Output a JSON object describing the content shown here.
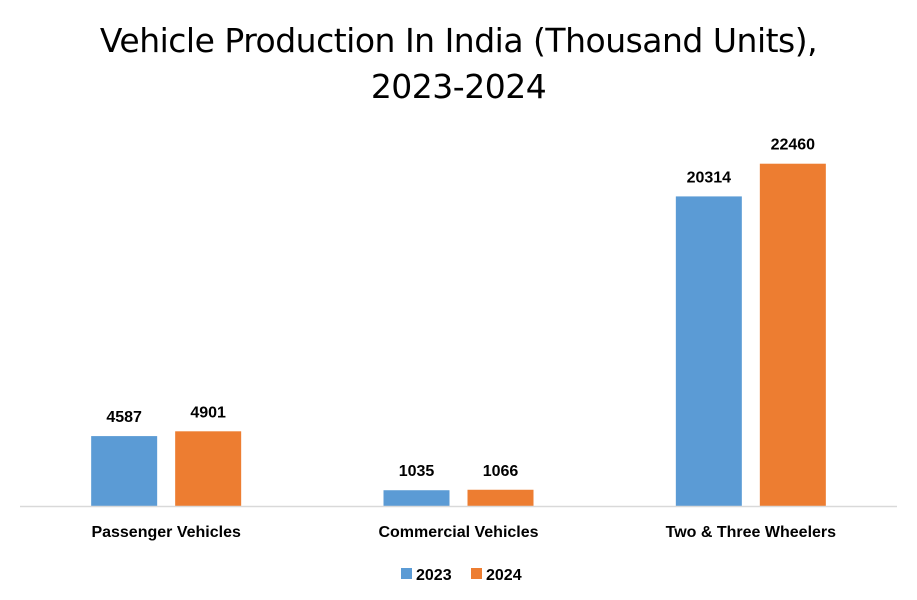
{
  "chart_data": {
    "type": "bar",
    "title": "Vehicle Production In India (Thousand Units), 2023-2024",
    "categories": [
      "Passenger Vehicles",
      "Commercial Vehicles",
      "Two & Three Wheelers"
    ],
    "series": [
      {
        "name": "2023",
        "values": [
          4587,
          1035,
          20314
        ],
        "color": "#5B9BD5"
      },
      {
        "name": "2024",
        "values": [
          4901,
          1066,
          22460
        ],
        "color": "#ED7D31"
      }
    ],
    "xlabel": "",
    "ylabel": "",
    "ylim": [
      0,
      25000
    ],
    "grid": false,
    "y_axis_visible": false,
    "data_labels": true,
    "legend_position": "bottom"
  }
}
